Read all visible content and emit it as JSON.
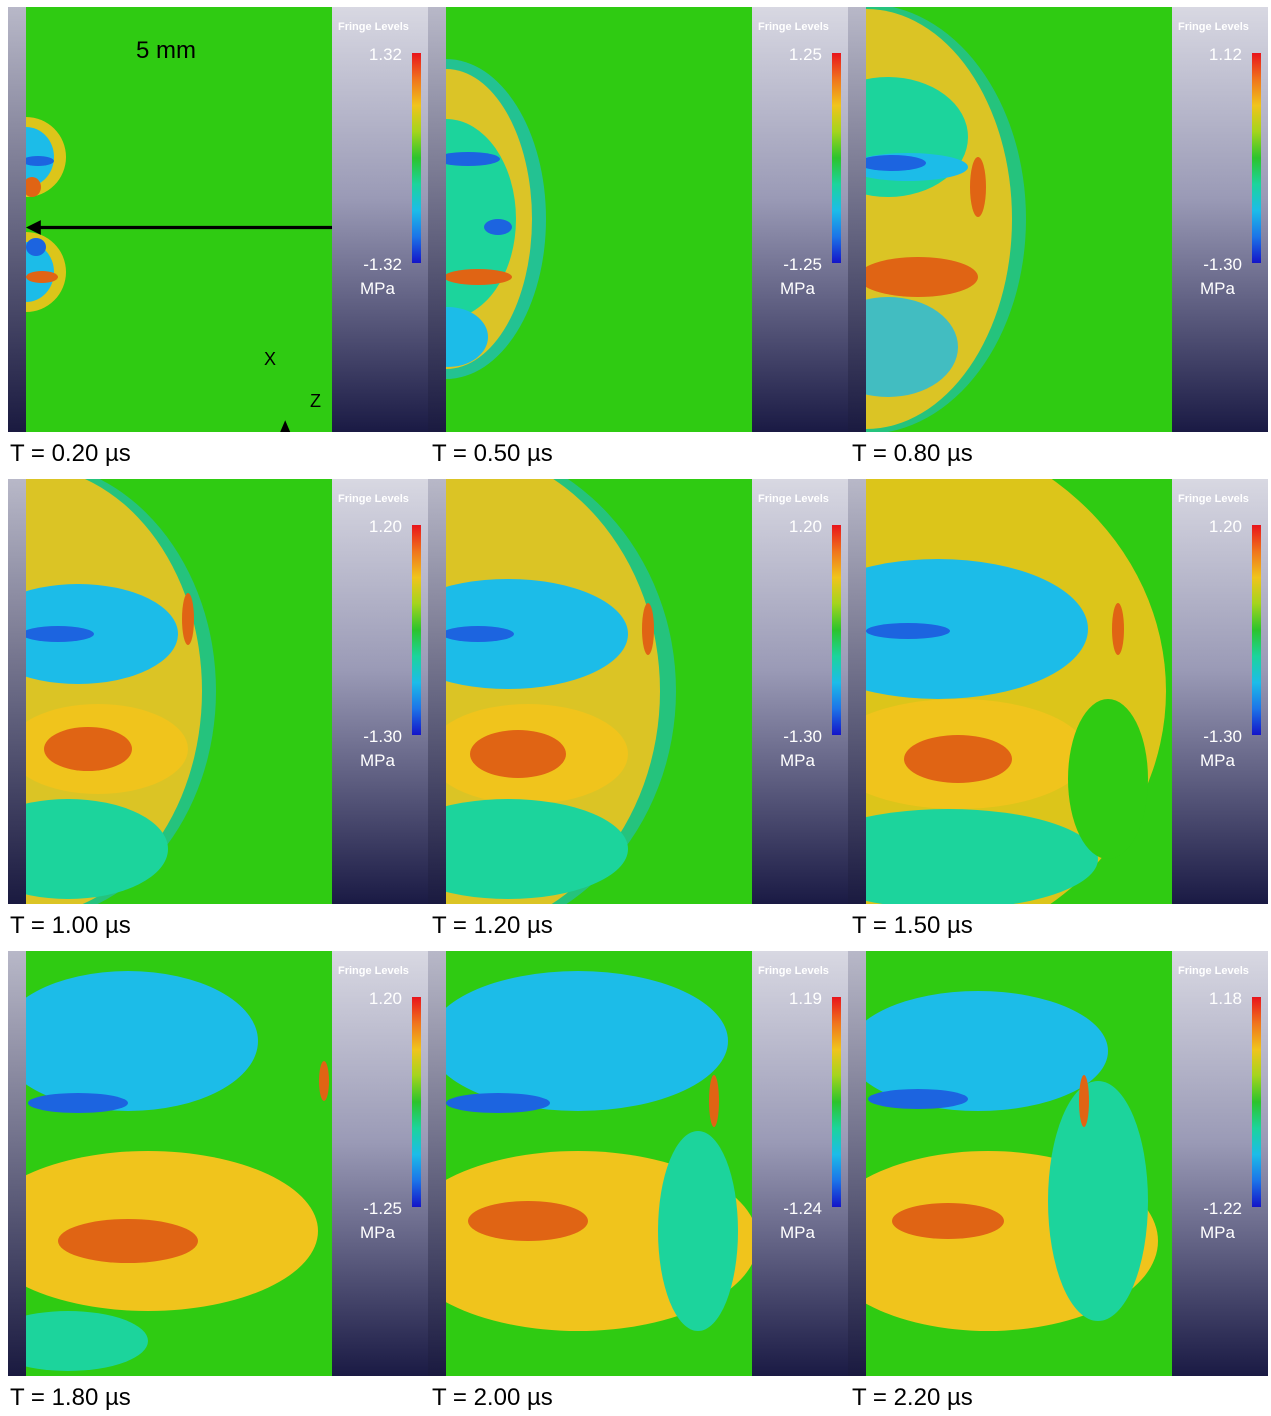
{
  "legend_title": "Fringe Levels",
  "unit": "MPa",
  "scale_label": "5 mm",
  "axis_labels": {
    "x": "X",
    "z": "Z"
  },
  "colorbar": [
    "#e8141c",
    "#f0741c",
    "#f0c41c",
    "#a4d41c",
    "#2cc42c",
    "#1cd49c",
    "#1cbce8",
    "#1c74e8",
    "#1414c8"
  ],
  "panels": [
    {
      "time": "T = 0.20 µs",
      "max": "1.32",
      "min": "-1.32"
    },
    {
      "time": "T = 0.50 µs",
      "max": "1.25",
      "min": "-1.25"
    },
    {
      "time": "T = 0.80 µs",
      "max": "1.12",
      "min": "-1.30"
    },
    {
      "time": "T = 1.00 µs",
      "max": "1.20",
      "min": "-1.30"
    },
    {
      "time": "T = 1.20 µs",
      "max": "1.20",
      "min": "-1.30"
    },
    {
      "time": "T = 1.50 µs",
      "max": "1.20",
      "min": "-1.30"
    },
    {
      "time": "T = 1.80 µs",
      "max": "1.20",
      "min": "-1.25"
    },
    {
      "time": "T = 2.00 µs",
      "max": "1.19",
      "min": "-1.24"
    },
    {
      "time": "T = 2.20 µs",
      "max": "1.18",
      "min": "-1.22"
    }
  ]
}
